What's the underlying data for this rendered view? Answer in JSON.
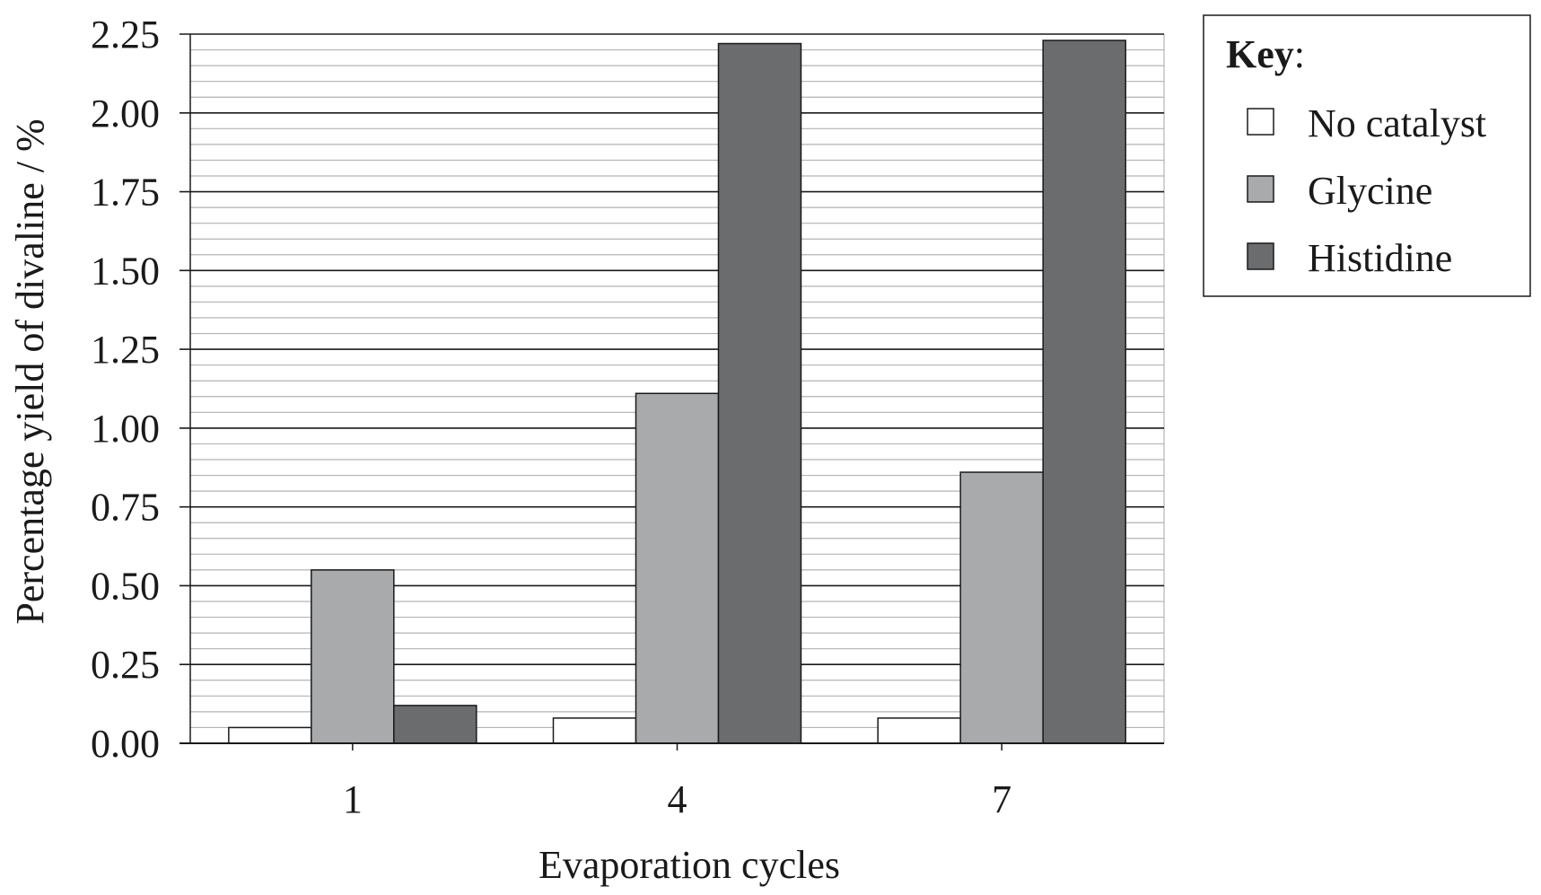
{
  "chart_data": {
    "type": "bar",
    "categories": [
      "1",
      "4",
      "7"
    ],
    "series": [
      {
        "name": "No catalyst",
        "values": [
          0.05,
          0.08,
          0.08
        ],
        "color": "#ffffff"
      },
      {
        "name": "Glycine",
        "values": [
          0.55,
          1.11,
          0.86
        ],
        "color": "#a9aaac"
      },
      {
        "name": "Histidine",
        "values": [
          0.12,
          2.22,
          2.23
        ],
        "color": "#6b6c6e"
      }
    ],
    "xlabel": "Evaporation cycles",
    "ylabel": "Percentage yield of divaline / %",
    "ylim": [
      0,
      2.25
    ],
    "yticks": [
      "0.00",
      "0.25",
      "0.50",
      "0.75",
      "1.00",
      "1.25",
      "1.50",
      "1.75",
      "2.00",
      "2.25"
    ],
    "grid": {
      "major": true,
      "minor": true
    },
    "legend": {
      "title": "Key",
      "title_suffix": ":",
      "position": "right-top"
    }
  }
}
